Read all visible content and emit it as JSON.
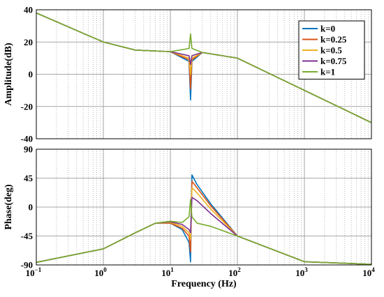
{
  "chart_data": [
    {
      "type": "line",
      "title": "",
      "xlabel": "",
      "ylabel": "Amplitude(dB)",
      "x_scale": "log",
      "xlim": [
        0.1,
        10000
      ],
      "ylim": [
        -40,
        40
      ],
      "yticks": [
        "-40",
        "-20",
        "0",
        "20",
        "40"
      ],
      "grid": true,
      "legend_position": "top-right",
      "colors": [
        "#0072BD",
        "#D95319",
        "#EDB120",
        "#7E2F8E",
        "#77AC30"
      ],
      "series": [
        {
          "name": "k=0",
          "x": [
            0.1,
            1,
            3,
            10,
            19,
            20,
            21,
            30,
            100,
            1000,
            10000
          ],
          "y": [
            38,
            20,
            15,
            14,
            8,
            -16,
            8,
            13.5,
            10,
            -10,
            -30
          ]
        },
        {
          "name": "k=0.25",
          "x": [
            0.1,
            1,
            3,
            10,
            19,
            20,
            21,
            30,
            100,
            1000,
            10000
          ],
          "y": [
            38,
            20,
            15,
            14,
            9,
            -9,
            9,
            13.5,
            10,
            -10,
            -30
          ]
        },
        {
          "name": "k=0.5",
          "x": [
            0.1,
            1,
            3,
            10,
            19,
            20,
            21,
            30,
            100,
            1000,
            10000
          ],
          "y": [
            38,
            20,
            15,
            14,
            10,
            0,
            10,
            13.5,
            10,
            -10,
            -30
          ]
        },
        {
          "name": "k=0.75",
          "x": [
            0.1,
            1,
            3,
            10,
            19,
            20,
            21,
            30,
            100,
            1000,
            10000
          ],
          "y": [
            38,
            20,
            15,
            14,
            11.5,
            6,
            11.5,
            13.5,
            10,
            -10,
            -30
          ]
        },
        {
          "name": "k=1",
          "x": [
            0.1,
            1,
            3,
            10,
            19,
            20,
            21,
            30,
            100,
            1000,
            10000
          ],
          "y": [
            38,
            20,
            15,
            14,
            16,
            25,
            16,
            13.5,
            10,
            -10,
            -30
          ]
        }
      ]
    },
    {
      "type": "line",
      "title": "",
      "xlabel": "Frequency (Hz)",
      "ylabel": "Phase(deg)",
      "x_scale": "log",
      "xlim": [
        0.1,
        10000
      ],
      "ylim": [
        -90,
        90
      ],
      "yticks": [
        "-90",
        "-45",
        "0",
        "45",
        "90"
      ],
      "xticks": [
        "10",
        "10",
        "10",
        "10",
        "10",
        "10"
      ],
      "xtick_exponents": [
        "−1",
        "0",
        "1",
        "2",
        "3",
        "4"
      ],
      "grid": true,
      "colors": [
        "#0072BD",
        "#D95319",
        "#EDB120",
        "#7E2F8E",
        "#77AC30"
      ],
      "series": [
        {
          "name": "k=0",
          "x": [
            0.1,
            1,
            3,
            6,
            10,
            15,
            19,
            20,
            21,
            25,
            40,
            100,
            1000,
            10000
          ],
          "y": [
            -86,
            -65,
            -40,
            -25,
            -25,
            -35,
            -55,
            -85,
            50,
            35,
            5,
            -45,
            -85,
            -89
          ]
        },
        {
          "name": "k=0.25",
          "x": [
            0.1,
            1,
            3,
            6,
            10,
            15,
            19,
            20,
            21,
            25,
            40,
            100,
            1000,
            10000
          ],
          "y": [
            -86,
            -65,
            -40,
            -25,
            -25,
            -33,
            -45,
            -70,
            40,
            30,
            2,
            -45,
            -85,
            -89
          ]
        },
        {
          "name": "k=0.5",
          "x": [
            0.1,
            1,
            3,
            6,
            10,
            15,
            19,
            20,
            21,
            25,
            40,
            100,
            1000,
            10000
          ],
          "y": [
            -86,
            -65,
            -40,
            -25,
            -24,
            -30,
            -40,
            -50,
            30,
            22,
            -3,
            -45,
            -85,
            -89
          ]
        },
        {
          "name": "k=0.75",
          "x": [
            0.1,
            1,
            3,
            6,
            10,
            15,
            19,
            20,
            21,
            25,
            40,
            100,
            1000,
            10000
          ],
          "y": [
            -86,
            -65,
            -40,
            -25,
            -23,
            -27,
            -35,
            -40,
            15,
            10,
            -10,
            -45,
            -85,
            -89
          ]
        },
        {
          "name": "k=1",
          "x": [
            0.1,
            1,
            3,
            6,
            10,
            15,
            19,
            20,
            21,
            25,
            40,
            100,
            1000,
            10000
          ],
          "y": [
            -86,
            -65,
            -40,
            -25,
            -22,
            -24,
            -15,
            12,
            -15,
            -25,
            -30,
            -45,
            -85,
            -89
          ]
        }
      ]
    }
  ]
}
